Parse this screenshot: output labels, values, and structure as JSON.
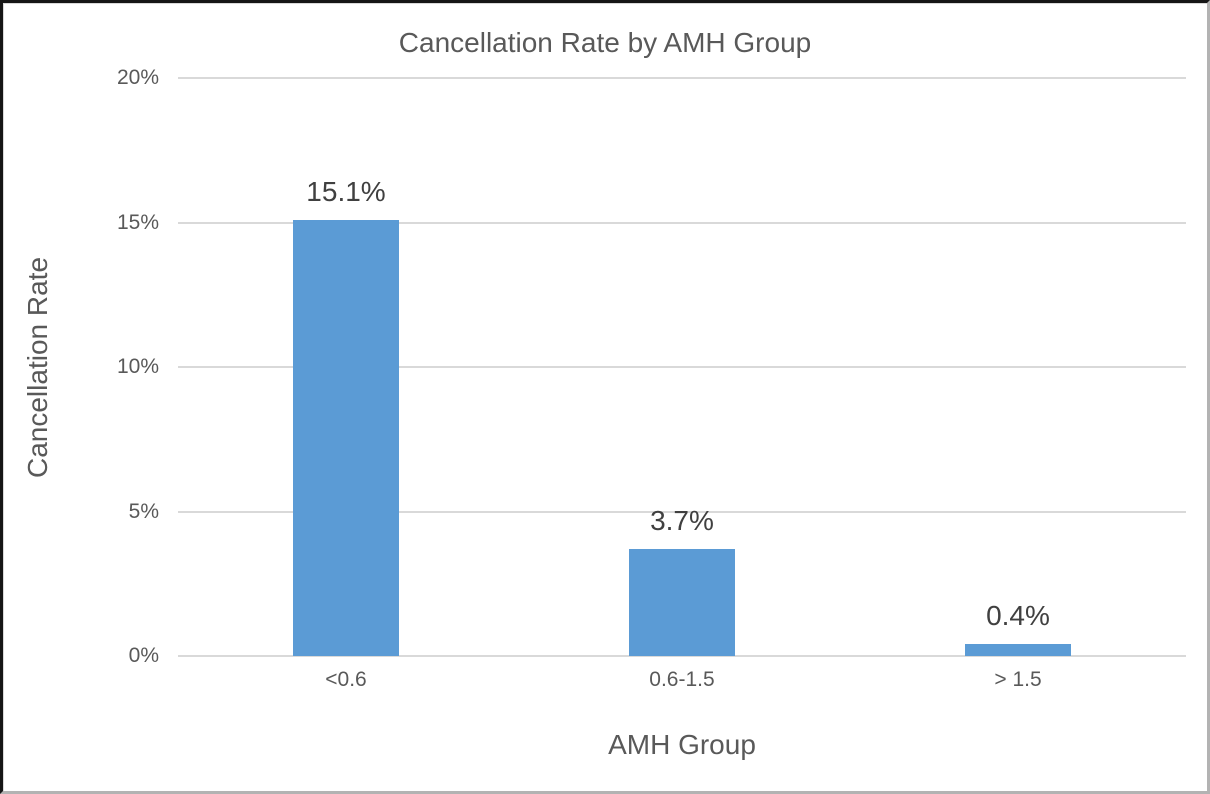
{
  "chart_data": {
    "type": "bar",
    "title": "Cancellation Rate by AMH Group",
    "xlabel": "AMH Group",
    "ylabel": "Cancellation Rate",
    "categories": [
      "<0.6",
      "0.6-1.5",
      "> 1.5"
    ],
    "values": [
      15.1,
      3.7,
      0.4
    ],
    "data_labels": [
      "15.1%",
      "3.7%",
      "0.4%"
    ],
    "ylim": [
      0,
      20
    ],
    "yticks": [
      0,
      5,
      10,
      15,
      20
    ],
    "ytick_labels": [
      "0%",
      "5%",
      "10%",
      "15%",
      "20%"
    ],
    "grid": true,
    "legend": "none",
    "bar_color": "#5b9bd5",
    "gridline_color": "#d9d9d9",
    "text_color": "#595959",
    "data_label_color": "#404040"
  }
}
